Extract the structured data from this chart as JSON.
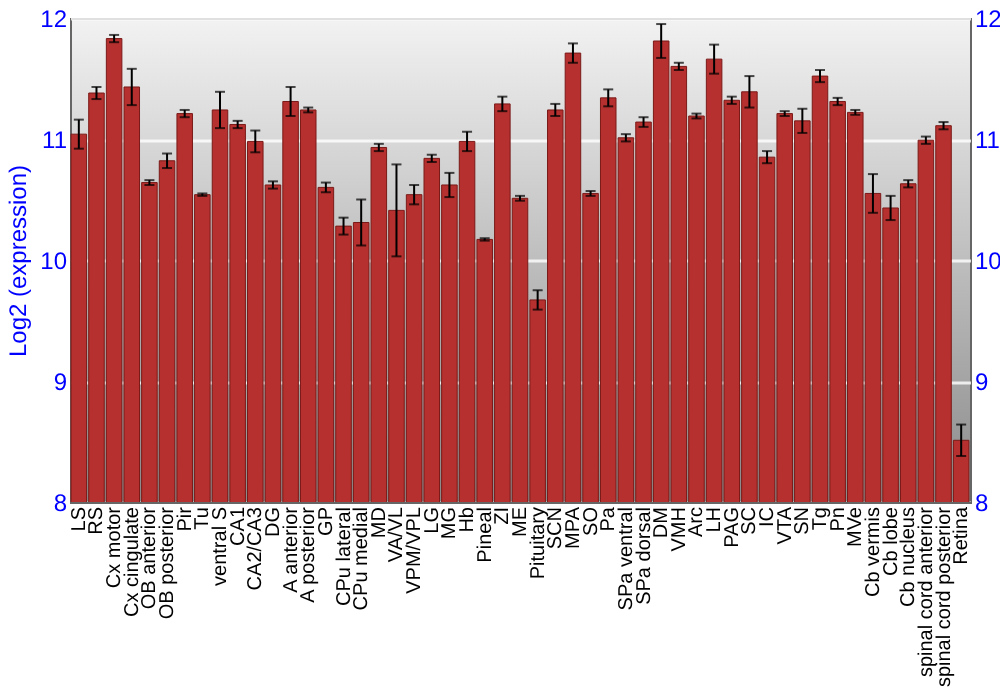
{
  "chart_data": {
    "type": "bar",
    "ylabel": "Log2 (expression)",
    "categories": [
      "LS",
      "RS",
      "Cx motor",
      "Cx cingulate",
      "OB anterior",
      "OB posterior",
      "Pir",
      "Tu",
      "ventral S",
      "CA1",
      "CA2/CA3",
      "DG",
      "A anterior",
      "A posterior",
      "GP",
      "CPu lateral",
      "CPu medial",
      "MD",
      "VA/VL",
      "VPM/VPL",
      "LG",
      "MG",
      "Hb",
      "Pineal",
      "ZI",
      "ME",
      "Pituitary",
      "SCN",
      "MPA",
      "SO",
      "Pa",
      "SPa ventral",
      "SPa dorsal",
      "DM",
      "VMH",
      "Arc",
      "LH",
      "PAG",
      "SC",
      "IC",
      "VTA",
      "SN",
      "Tg",
      "Pn",
      "MVe",
      "Cb vermis",
      "Cb lobe",
      "Cb nucleus",
      "spinal cord anterior",
      "spinal cord posterior",
      "Retina"
    ],
    "values": [
      11.04,
      11.38,
      11.83,
      11.43,
      10.64,
      10.82,
      11.21,
      10.54,
      11.24,
      11.12,
      10.98,
      10.62,
      11.31,
      11.24,
      10.6,
      10.28,
      10.31,
      10.93,
      10.41,
      10.54,
      10.84,
      10.62,
      10.98,
      10.17,
      11.29,
      10.51,
      9.67,
      11.24,
      11.71,
      10.55,
      11.34,
      11.01,
      11.14,
      11.81,
      11.6,
      11.19,
      11.66,
      11.32,
      11.39,
      10.85,
      11.21,
      11.15,
      11.52,
      11.31,
      11.22,
      10.55,
      10.43,
      10.63,
      10.99,
      11.11,
      8.51
    ],
    "errors": [
      0.12,
      0.05,
      0.03,
      0.15,
      0.02,
      0.06,
      0.03,
      0.01,
      0.15,
      0.03,
      0.09,
      0.03,
      0.12,
      0.02,
      0.04,
      0.07,
      0.19,
      0.03,
      0.38,
      0.08,
      0.03,
      0.1,
      0.08,
      0.01,
      0.06,
      0.02,
      0.08,
      0.05,
      0.08,
      0.02,
      0.07,
      0.03,
      0.04,
      0.14,
      0.03,
      0.02,
      0.12,
      0.03,
      0.13,
      0.05,
      0.02,
      0.1,
      0.05,
      0.03,
      0.02,
      0.16,
      0.1,
      0.03,
      0.03,
      0.03,
      0.13
    ],
    "color": "#b5302e",
    "ylim": [
      8,
      12
    ],
    "yticks": [
      8,
      9,
      10,
      11,
      12
    ],
    "y2lim": [
      8,
      12
    ],
    "y2ticks": [
      8,
      9,
      10,
      11,
      12
    ],
    "grid": true
  }
}
